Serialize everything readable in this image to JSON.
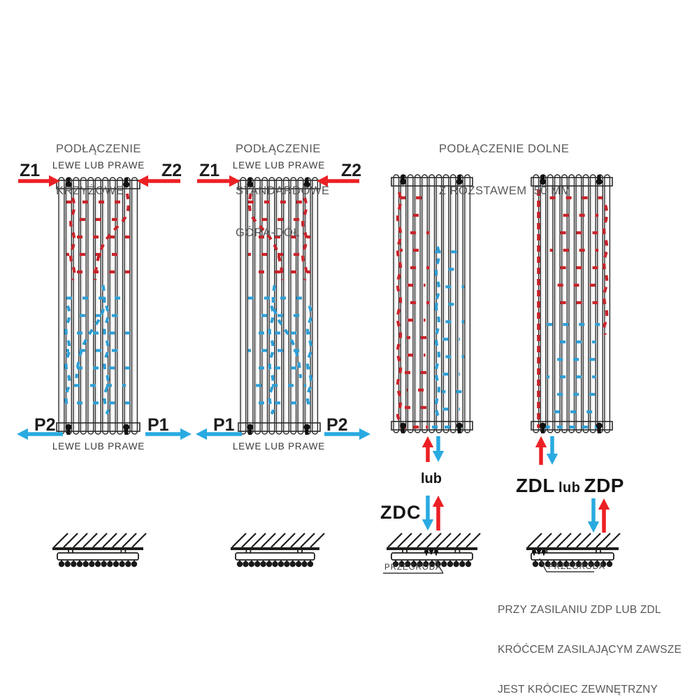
{
  "colors": {
    "arrow_red": "#ec2024",
    "flow_red": "#c8232a",
    "arrow_blue": "#29aae1",
    "flow_blue": "#2d9fd6",
    "line_black": "#1d1d1b",
    "text_gray": "#58595b"
  },
  "titles": {
    "col1": [
      "PODŁĄCZENIE",
      "KRZYŻOWE"
    ],
    "col2": [
      "PODŁĄCZENIE",
      "STANDARDOWE",
      "GÓRA-DÓŁ"
    ],
    "col34": [
      "PODŁĄCZENIE DOLNE",
      "Z ROZSTAWEM  50 MM"
    ]
  },
  "radiator1": {
    "top_label": "LEWE LUB PRAWE",
    "bottom_label": "LEWE LUB PRAWE",
    "supply_left": "Z1",
    "supply_right": "Z2",
    "return_left": "P2",
    "return_right": "P1"
  },
  "radiator2": {
    "top_label": "LEWE LUB PRAWE",
    "bottom_label": "LEWE LUB PRAWE",
    "supply_left": "Z1",
    "supply_right": "Z2",
    "return_left": "P1",
    "return_right": "P2"
  },
  "radiator3": {
    "or_label": "lub",
    "connection_label": "ZDC",
    "partition_label": "PRZEGRODA"
  },
  "radiator4": {
    "connection_label_parts": [
      "ZDL",
      "lub",
      "ZDP"
    ],
    "partition_label": "PRZEGRODA"
  },
  "note_lines": [
    "PRZY ZASILANIU ZDP LUB ZDL",
    "KRÓĆCEM ZASILAJĄCYM ZAWSZE",
    "JEST KRÓCIEC ZEWNĘTRZNY"
  ]
}
